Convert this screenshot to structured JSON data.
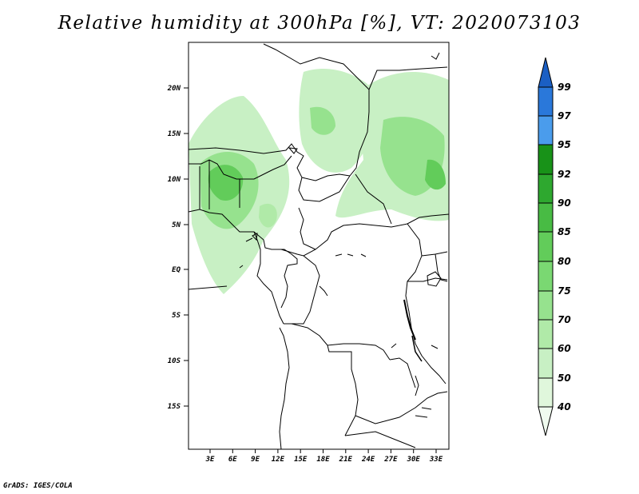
{
  "title": "Relative humidity at 300hPa [%], VT: 2020073103",
  "credit": "GrADS: IGES/COLA",
  "lat_ticks": [
    "20N",
    "15N",
    "10N",
    "5N",
    "EQ",
    "5S",
    "10S",
    "15S"
  ],
  "lon_ticks": [
    "3E",
    "6E",
    "9E",
    "12E",
    "15E",
    "18E",
    "21E",
    "24E",
    "27E",
    "30E",
    "33E"
  ],
  "colorbar": {
    "labels": [
      "40",
      "50",
      "60",
      "70",
      "75",
      "80",
      "85",
      "90",
      "92",
      "95",
      "97",
      "99"
    ],
    "colors": [
      "#f0fbef",
      "#e0f7dc",
      "#c8f0c4",
      "#b0eaa8",
      "#96e28e",
      "#7ad872",
      "#62cc5a",
      "#48bb44",
      "#2ea82f",
      "#189218",
      "#4a9cec",
      "#2a78da",
      "#1b5fc4"
    ]
  }
}
